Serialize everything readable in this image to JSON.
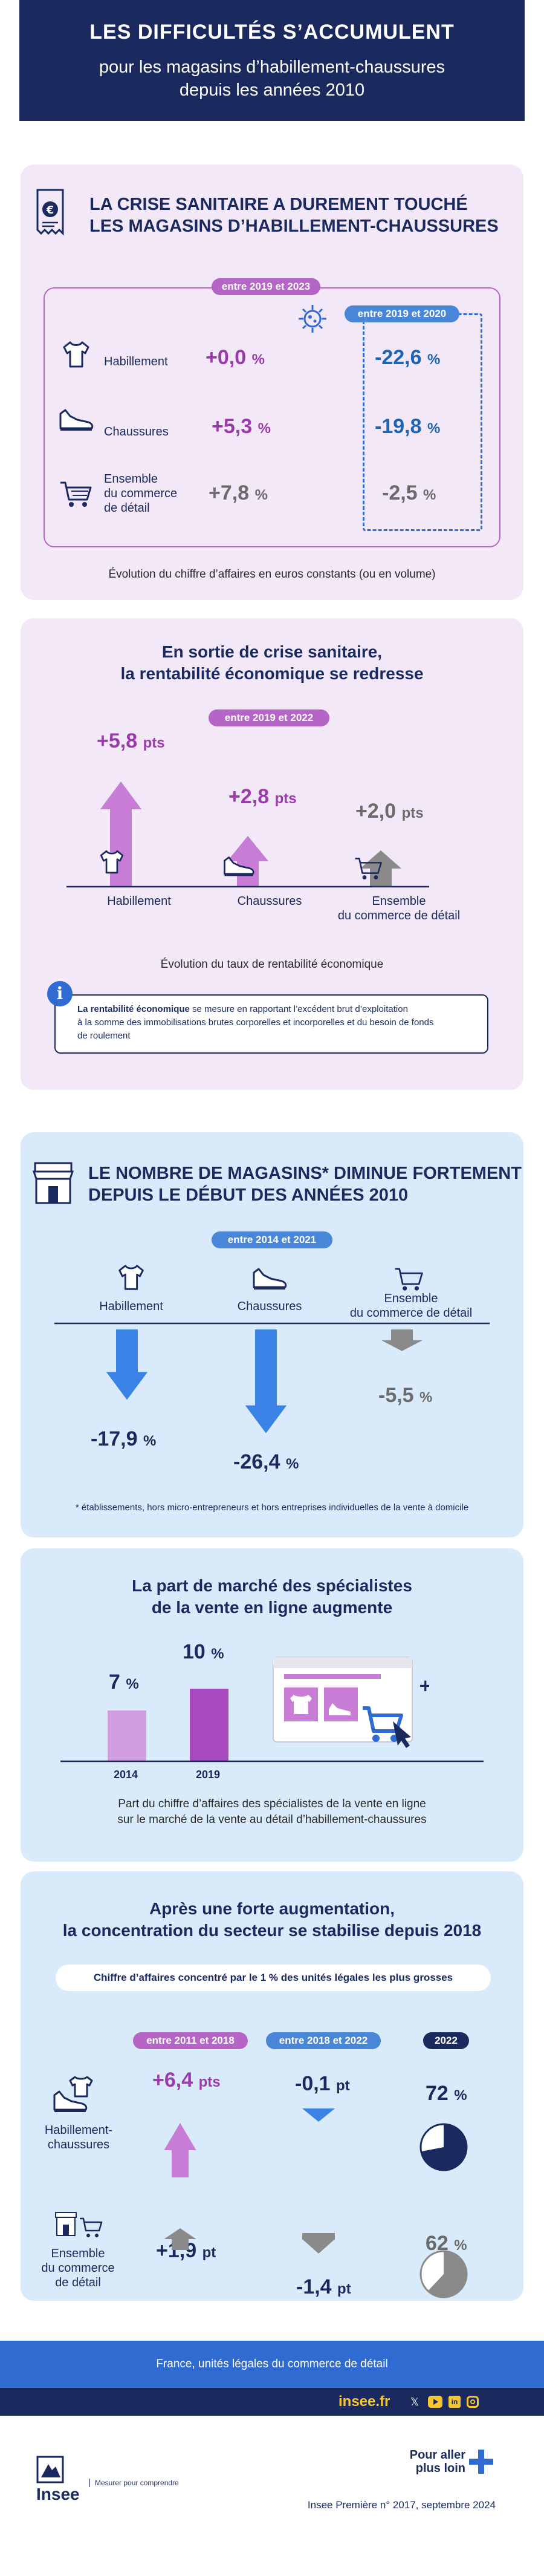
{
  "header": {
    "title": "LES DIFFICULTÉS S’ACCUMULENT",
    "subtitle_line1": "pour les magasins d’habillement-chaussures",
    "subtitle_line2": "depuis les années 2010"
  },
  "section1": {
    "title_line1": "LA CRISE SANITAIRE A DUREMENT TOUCHÉ",
    "title_line2": "LES MAGASINS D’HABILLEMENT-CHAUSSURES",
    "period_a": "entre 2019 et 2023",
    "period_b": "entre 2019 et 2020",
    "rows": [
      {
        "label": "Habillement",
        "value_a": "+0,0",
        "value_b": "-22,6"
      },
      {
        "label": "Chaussures",
        "value_a": "+5,3",
        "value_b": "-19,8"
      },
      {
        "label_line1": "Ensemble",
        "label_line2": "du commerce",
        "label_line3": "de détail",
        "value_a": "+7,8",
        "value_b": "-2,5"
      }
    ],
    "unit": "%",
    "caption": "Évolution du chiffre d’affaires en euros constants (ou en volume)"
  },
  "section2": {
    "title_line1": "En sortie de crise sanitaire,",
    "title_line2": "la rentabilité économique se redresse",
    "period": "entre 2019 et 2022",
    "bars": [
      {
        "label": "Habillement",
        "value": "+5,8",
        "num": 5.8
      },
      {
        "label": "Chaussures",
        "value": "+2,8",
        "num": 2.8
      },
      {
        "label_line1": "Ensemble",
        "label_line2": "du commerce de détail",
        "value": "+2,0",
        "num": 2.0
      }
    ],
    "unit": "pts",
    "caption": "Évolution du taux de rentabilité économique",
    "info_bold": "La rentabilité économique",
    "info_line1": " se mesure en rapportant l’excédent brut d’exploitation",
    "info_line2": "à la somme des immobilisations brutes corporelles et incorporelles et du besoin de fonds",
    "info_line3": "de roulement"
  },
  "section3": {
    "title_line1": "LE NOMBRE DE MAGASINS* DIMINUE FORTEMENT",
    "title_line2": "DEPUIS LE DÉBUT DES ANNÉES 2010",
    "period": "entre 2014 et 2021",
    "items": [
      {
        "label": "Habillement",
        "value": "-17,9",
        "num": -17.9
      },
      {
        "label": "Chaussures",
        "value": "-26,4",
        "num": -26.4
      },
      {
        "label_line1": "Ensemble",
        "label_line2": "du commerce de détail",
        "value": "-5,5",
        "num": -5.5
      }
    ],
    "unit": "%",
    "footnote": "* établissements, hors micro-entrepreneurs et hors entreprises individuelles de la vente à domicile"
  },
  "section4": {
    "title_line1": "La part de marché des spécialistes",
    "title_line2": "de la vente en ligne augmente",
    "bars": [
      {
        "year": "2014",
        "value": "7",
        "num": 7
      },
      {
        "year": "2019",
        "value": "10",
        "num": 10
      }
    ],
    "unit": "%",
    "caption_line1": "Part du chiffre d’affaires des spécialistes de la vente en ligne",
    "caption_line2": "sur le marché de la vente au détail d’habillement-chaussures"
  },
  "section5": {
    "title_line1": "Après une forte augmentation,",
    "title_line2": "la concentration du secteur se stabilise depuis 2018",
    "box_label": "Chiffre d’affaires concentré par le 1 % des unités légales les plus grosses",
    "period_a": "entre 2011 et 2018",
    "period_b": "entre 2018 et 2022",
    "period_c": "2022",
    "rows": [
      {
        "label_line1": "Habillement-",
        "label_line2": "chaussures",
        "value_a": "+6,4",
        "value_b": "-0,1",
        "share": "72",
        "share_num": 72
      },
      {
        "label_line1": "Ensemble",
        "label_line2": "du commerce",
        "label_line3": "de détail",
        "value_a": "+1,9",
        "value_b": "-1,4",
        "share": "62",
        "share_num": 62
      }
    ],
    "unit_pts": "pts",
    "unit_pt": "pt",
    "unit_pct": "%"
  },
  "footer": {
    "scope": "France, unités légales du commerce de détail",
    "site": "insee.fr",
    "logo_name": "Insee",
    "logo_tagline": "Mesurer pour comprendre",
    "more_line1": "Pour aller",
    "more_line2": "plus loin",
    "source": "Insee Première n° 2017, septembre 2024"
  },
  "colors": {
    "navy": "#1a2a5e",
    "purple": "#9b3aab",
    "pink_arrow": "#c77dd6",
    "blue_arrow": "#3b82e6",
    "grey_arrow": "#8a8a8a",
    "pink_bg": "#f3e8f7",
    "blue_bg": "#d9ebfa"
  }
}
